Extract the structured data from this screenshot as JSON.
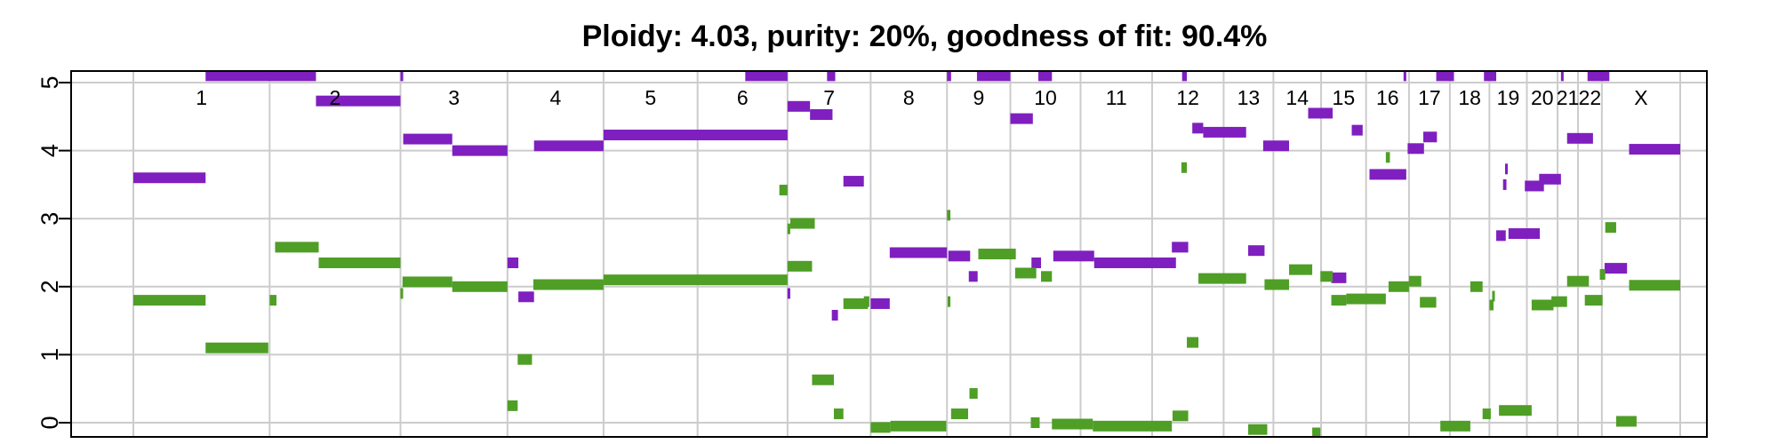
{
  "chart_data": {
    "type": "scatter",
    "title": "Ploidy: 4.03, purity: 20%, goodness of fit: 90.4%",
    "xlabel": "",
    "ylabel": "",
    "ylim": [
      0,
      5
    ],
    "yticks": [
      "0",
      "1",
      "2",
      "3",
      "4",
      "5"
    ],
    "grid": true,
    "legend": "none",
    "colors": {
      "major": "#7f1fbf",
      "minor": "#4f9e26"
    },
    "chromosomes": [
      {
        "label": "1",
        "start": 0,
        "end": 2000
      },
      {
        "label": "2",
        "start": 2000,
        "end": 3920
      },
      {
        "label": "3",
        "start": 3920,
        "end": 5490
      },
      {
        "label": "4",
        "start": 5490,
        "end": 6900
      },
      {
        "label": "5",
        "start": 6900,
        "end": 8280
      },
      {
        "label": "6",
        "start": 8280,
        "end": 9600
      },
      {
        "label": "7",
        "start": 9600,
        "end": 10820
      },
      {
        "label": "8",
        "start": 10820,
        "end": 11940
      },
      {
        "label": "9",
        "start": 11940,
        "end": 12870
      },
      {
        "label": "10",
        "start": 12870,
        "end": 13900
      },
      {
        "label": "11",
        "start": 13900,
        "end": 14950
      },
      {
        "label": "12",
        "start": 14950,
        "end": 16000
      },
      {
        "label": "13",
        "start": 16000,
        "end": 16730
      },
      {
        "label": "14",
        "start": 16730,
        "end": 17430
      },
      {
        "label": "15",
        "start": 17430,
        "end": 18090
      },
      {
        "label": "16",
        "start": 18090,
        "end": 18720
      },
      {
        "label": "17",
        "start": 18720,
        "end": 19320
      },
      {
        "label": "18",
        "start": 19320,
        "end": 19900
      },
      {
        "label": "19",
        "start": 19900,
        "end": 20450
      },
      {
        "label": "20",
        "start": 20450,
        "end": 20900
      },
      {
        "label": "21",
        "start": 20900,
        "end": 21200
      },
      {
        "label": "22",
        "start": 21200,
        "end": 21550
      },
      {
        "label": "X",
        "start": 21550,
        "end": 22700
      }
    ],
    "series": [
      {
        "role": "major",
        "segments": [
          [
            0,
            1060,
            3.6
          ],
          [
            1060,
            2680,
            5.1
          ],
          [
            2680,
            3920,
            4.73
          ],
          [
            3920,
            3960,
            5.1
          ],
          [
            3960,
            4680,
            4.17
          ],
          [
            4680,
            5490,
            4.0
          ],
          [
            5490,
            5650,
            2.35
          ],
          [
            5650,
            5880,
            1.85
          ],
          [
            5880,
            6900,
            4.07
          ],
          [
            6900,
            9600,
            4.23
          ],
          [
            8980,
            9600,
            5.1
          ],
          [
            9600,
            9640,
            1.9
          ],
          [
            9600,
            9930,
            4.65
          ],
          [
            9930,
            10260,
            4.53
          ],
          [
            10180,
            10300,
            5.1
          ],
          [
            10250,
            10340,
            1.58
          ],
          [
            10420,
            10720,
            3.55
          ],
          [
            10820,
            11100,
            1.75
          ],
          [
            11100,
            11940,
            2.5
          ],
          [
            11940,
            12000,
            5.1
          ],
          [
            11960,
            12280,
            2.45
          ],
          [
            12260,
            12390,
            2.15
          ],
          [
            12380,
            12870,
            5.1
          ],
          [
            12870,
            13200,
            4.47
          ],
          [
            13180,
            13320,
            2.35
          ],
          [
            13280,
            13480,
            5.1
          ],
          [
            13500,
            14100,
            2.45
          ],
          [
            14100,
            15300,
            2.35
          ],
          [
            15240,
            15480,
            2.58
          ],
          [
            15390,
            15460,
            5.1
          ],
          [
            15540,
            15700,
            4.33
          ],
          [
            15700,
            16330,
            4.27
          ],
          [
            16360,
            16600,
            2.53
          ],
          [
            16580,
            16960,
            4.07
          ],
          [
            17240,
            17600,
            4.55
          ],
          [
            17580,
            17800,
            2.13
          ],
          [
            17880,
            18040,
            4.3
          ],
          [
            18140,
            18680,
            3.65
          ],
          [
            18640,
            18680,
            5.1
          ],
          [
            18700,
            18940,
            4.03
          ],
          [
            18930,
            19130,
            4.2
          ],
          [
            19120,
            19380,
            5.1
          ],
          [
            19820,
            20000,
            5.1
          ],
          [
            20000,
            20140,
            2.75
          ],
          [
            20100,
            20150,
            3.5
          ],
          [
            20130,
            20160,
            3.73
          ],
          [
            20180,
            20640,
            2.78
          ],
          [
            20420,
            20700,
            3.48
          ],
          [
            20630,
            20950,
            3.58
          ],
          [
            20950,
            20980,
            5.1
          ],
          [
            21040,
            21420,
            4.18
          ],
          [
            21340,
            21660,
            5.1
          ],
          [
            21590,
            21920,
            2.27
          ],
          [
            21950,
            22700,
            4.02
          ]
        ]
      },
      {
        "role": "minor",
        "segments": [
          [
            0,
            1060,
            1.8
          ],
          [
            1060,
            1980,
            1.1
          ],
          [
            2000,
            2100,
            1.8
          ],
          [
            2080,
            2720,
            2.58
          ],
          [
            2720,
            3920,
            2.35
          ],
          [
            3920,
            3950,
            1.9
          ],
          [
            3950,
            4680,
            2.07
          ],
          [
            4680,
            5490,
            2.0
          ],
          [
            5490,
            5640,
            0.25
          ],
          [
            5640,
            5850,
            0.93
          ],
          [
            5870,
            6900,
            2.03
          ],
          [
            6900,
            9600,
            2.1
          ],
          [
            9480,
            9600,
            3.42
          ],
          [
            9600,
            9640,
            2.85
          ],
          [
            9640,
            10000,
            2.93
          ],
          [
            9600,
            9960,
            2.3
          ],
          [
            9960,
            10280,
            0.63
          ],
          [
            10280,
            10420,
            0.13
          ],
          [
            10420,
            10780,
            1.75
          ],
          [
            10720,
            10800,
            1.78
          ],
          [
            10820,
            11110,
            -0.07
          ],
          [
            11110,
            11930,
            -0.05
          ],
          [
            11940,
            11990,
            3.05
          ],
          [
            11950,
            11990,
            1.78
          ],
          [
            12000,
            12250,
            0.13
          ],
          [
            12270,
            12390,
            0.43
          ],
          [
            12400,
            12950,
            2.48
          ],
          [
            12940,
            13250,
            2.2
          ],
          [
            13170,
            13300,
            0.0
          ],
          [
            13320,
            13480,
            2.15
          ],
          [
            13480,
            14080,
            -0.02
          ],
          [
            14080,
            15240,
            -0.05
          ],
          [
            15250,
            15480,
            0.1
          ],
          [
            15380,
            15460,
            3.75
          ],
          [
            15460,
            15630,
            1.18
          ],
          [
            15630,
            16330,
            2.12
          ],
          [
            16360,
            16640,
            -0.1
          ],
          [
            16600,
            16960,
            2.03
          ],
          [
            16960,
            17300,
            2.25
          ],
          [
            17300,
            17420,
            -0.15
          ],
          [
            17420,
            17600,
            2.15
          ],
          [
            17580,
            17800,
            1.8
          ],
          [
            17800,
            18380,
            1.82
          ],
          [
            18380,
            18440,
            3.9
          ],
          [
            18420,
            18720,
            2.0
          ],
          [
            18720,
            18900,
            2.08
          ],
          [
            18880,
            19120,
            1.77
          ],
          [
            19180,
            19620,
            -0.05
          ],
          [
            19620,
            19800,
            2.0
          ],
          [
            19800,
            19920,
            0.13
          ],
          [
            19900,
            19960,
            1.73
          ],
          [
            19940,
            19980,
            1.86
          ],
          [
            20040,
            20520,
            0.18
          ],
          [
            20520,
            20840,
            1.73
          ],
          [
            20810,
            21040,
            1.78
          ],
          [
            21040,
            21360,
            2.08
          ],
          [
            21300,
            21560,
            1.8
          ],
          [
            21520,
            21600,
            2.18
          ],
          [
            21600,
            21760,
            2.87
          ],
          [
            21760,
            22060,
            0.02
          ],
          [
            21950,
            22700,
            2.02
          ]
        ]
      }
    ]
  }
}
